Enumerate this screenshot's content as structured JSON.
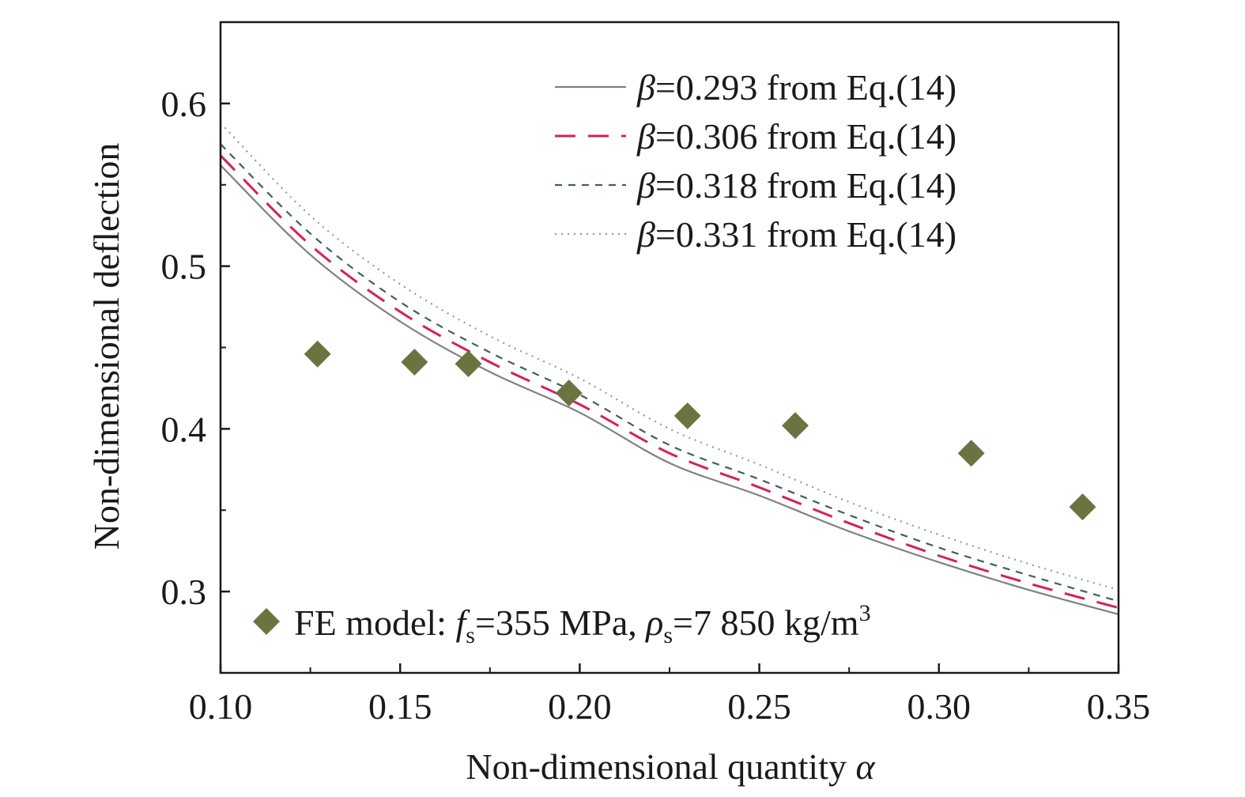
{
  "chart_data": {
    "type": "line",
    "xlabel": "Non-dimensional quantity α",
    "xlabel_main": "Non-dimensional quantity ",
    "xlabel_symbol": "α",
    "ylabel": "Non-dimensional deflection",
    "xlim": [
      0.1,
      0.35
    ],
    "ylim": [
      0.25,
      0.65
    ],
    "xticks": [
      "0.10",
      "0.15",
      "0.20",
      "0.25",
      "0.30",
      "0.35"
    ],
    "yticks": [
      "0.3",
      "0.4",
      "0.5",
      "0.6"
    ],
    "grid": false,
    "legend_position": "top-right",
    "series": [
      {
        "name": "β=0.293 from Eq.(14)",
        "symbol": "β",
        "rest": "=0.293 from Eq.(14)",
        "color": "#808080",
        "dash": "none",
        "x": [
          0.1,
          0.125,
          0.15,
          0.175,
          0.2,
          0.225,
          0.25,
          0.275,
          0.3,
          0.325,
          0.35
        ],
        "y": [
          0.562,
          0.507,
          0.466,
          0.435,
          0.41,
          0.379,
          0.359,
          0.337,
          0.318,
          0.301,
          0.286
        ]
      },
      {
        "name": "β=0.306 from Eq.(14)",
        "symbol": "β",
        "rest": "=0.306 from Eq.(14)",
        "color": "#d6205a",
        "dash": "26,16",
        "x": [
          0.1,
          0.125,
          0.15,
          0.175,
          0.2,
          0.225,
          0.25,
          0.275,
          0.3,
          0.325,
          0.35
        ],
        "y": [
          0.568,
          0.513,
          0.472,
          0.441,
          0.415,
          0.385,
          0.364,
          0.342,
          0.322,
          0.305,
          0.29
        ]
      },
      {
        "name": "β=0.318 from Eq.(14)",
        "symbol": "β",
        "rest": "=0.318 from Eq.(14)",
        "color": "#3f5f62",
        "dash": "9,8",
        "x": [
          0.1,
          0.125,
          0.15,
          0.175,
          0.2,
          0.225,
          0.25,
          0.275,
          0.3,
          0.325,
          0.35
        ],
        "y": [
          0.575,
          0.52,
          0.478,
          0.447,
          0.421,
          0.39,
          0.369,
          0.347,
          0.327,
          0.31,
          0.294
        ]
      },
      {
        "name": "β=0.331 from Eq.(14)",
        "symbol": "β",
        "rest": "=0.331 from Eq.(14)",
        "color": "#8a9ca6",
        "dash": "2,6",
        "x": [
          0.1,
          0.125,
          0.15,
          0.175,
          0.2,
          0.225,
          0.25,
          0.275,
          0.3,
          0.325,
          0.35
        ],
        "y": [
          0.588,
          0.531,
          0.489,
          0.457,
          0.431,
          0.4,
          0.378,
          0.355,
          0.335,
          0.317,
          0.301
        ]
      }
    ],
    "scatter": {
      "name": "FE model: fs=355 MPa, ρs=7 850 kg/m3",
      "color": "#6b7441",
      "x": [
        0.127,
        0.154,
        0.169,
        0.197,
        0.23,
        0.26,
        0.309,
        0.34
      ],
      "y": [
        0.446,
        0.441,
        0.44,
        0.422,
        0.408,
        0.402,
        0.385,
        0.352
      ]
    },
    "scatter_legend": {
      "prefix": "FE model: ",
      "f": "f",
      "f_sub": "s",
      "f_val": "=355 MPa, ",
      "rho": "ρ",
      "rho_sub": "s",
      "rho_val": "=7 850 kg/m",
      "sup": "3"
    }
  }
}
